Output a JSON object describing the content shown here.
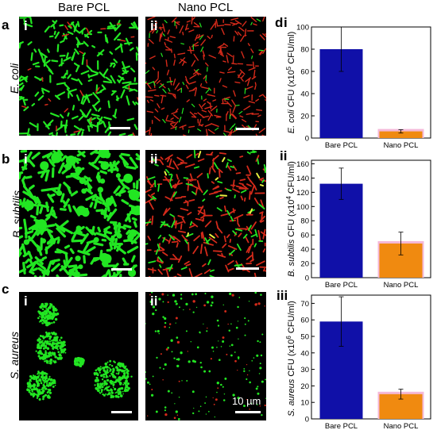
{
  "columns": {
    "left": "Bare PCL",
    "right": "Nano PCL"
  },
  "rows": [
    {
      "letter": "a",
      "organism": "E. coli",
      "numeral_left": "i",
      "numeral_right": "ii"
    },
    {
      "letter": "b",
      "organism": "B. subtilis",
      "numeral_left": "i",
      "numeral_right": "ii"
    },
    {
      "letter": "c",
      "organism": "S. aureus",
      "numeral_left": "i",
      "numeral_right": "ii"
    }
  ],
  "scale_text": "10 µm",
  "panel_d_letter": "d",
  "colors": {
    "bar_bare": "#1010a8",
    "bar_nano": "#f08a10",
    "nano_glow": "#f4b8d8",
    "live": "#22e622",
    "dead": "#d42a1a"
  },
  "chart_data": [
    {
      "type": "bar",
      "panel": "i",
      "categories": [
        "Bare PCL",
        "Nano PCL"
      ],
      "values": [
        80,
        6
      ],
      "errors": [
        20,
        1.5
      ],
      "ylabel_italic": "E. coli",
      "ylabel_rest": " CFU (x10",
      "ylabel_sup": "5",
      "ylabel_end": " CFU/ml)",
      "ylim": [
        0,
        100
      ],
      "yticks": [
        0,
        20,
        40,
        60,
        80,
        100
      ]
    },
    {
      "type": "bar",
      "panel": "ii",
      "categories": [
        "Bare PCL",
        "Nano PCL"
      ],
      "values": [
        132,
        48
      ],
      "errors": [
        22,
        16
      ],
      "ylabel_italic": "B. subtilis",
      "ylabel_rest": " CFU (x10",
      "ylabel_sup": "4",
      "ylabel_end": " CFU/ml)",
      "ylim": [
        0,
        165
      ],
      "yticks": [
        0,
        20,
        40,
        60,
        80,
        100,
        120,
        140,
        160
      ]
    },
    {
      "type": "bar",
      "panel": "iii",
      "categories": [
        "Bare PCL",
        "Nano PCL"
      ],
      "values": [
        59,
        15
      ],
      "errors": [
        15,
        3
      ],
      "ylabel_italic": "S. aureus",
      "ylabel_rest": " CFU (x10",
      "ylabel_sup": "6",
      "ylabel_end": " CFU/ml)",
      "ylim": [
        0,
        75
      ],
      "yticks": [
        0,
        10,
        20,
        30,
        40,
        50,
        60,
        70
      ]
    }
  ]
}
